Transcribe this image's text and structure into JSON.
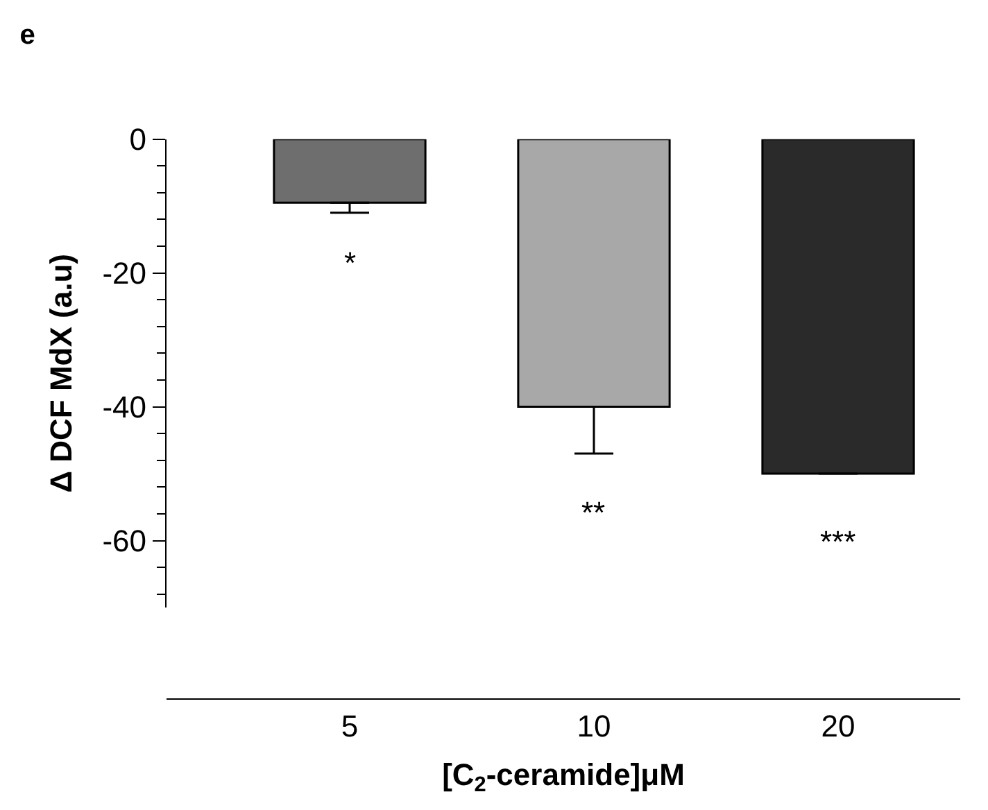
{
  "chart_data": {
    "type": "bar",
    "title": "e",
    "xlabel": "[C$_{2}$-ceramide]μM",
    "ylabel": "Δ DCF MdX (a.u)",
    "categories": [
      "5",
      "10",
      "20"
    ],
    "values": [
      -9.5,
      -40,
      -50
    ],
    "colors": [
      "#6e6e6e",
      "#a8a8a8",
      "#2a2a2a"
    ],
    "errors": [
      [
        -11,
        -9.5
      ],
      [
        -47,
        -40
      ],
      null
    ],
    "ylim": [
      -70,
      0
    ],
    "yticks": [
      0,
      -20,
      -40,
      -60
    ],
    "annotations": [
      "*",
      "**",
      "***"
    ],
    "legend": false
  }
}
